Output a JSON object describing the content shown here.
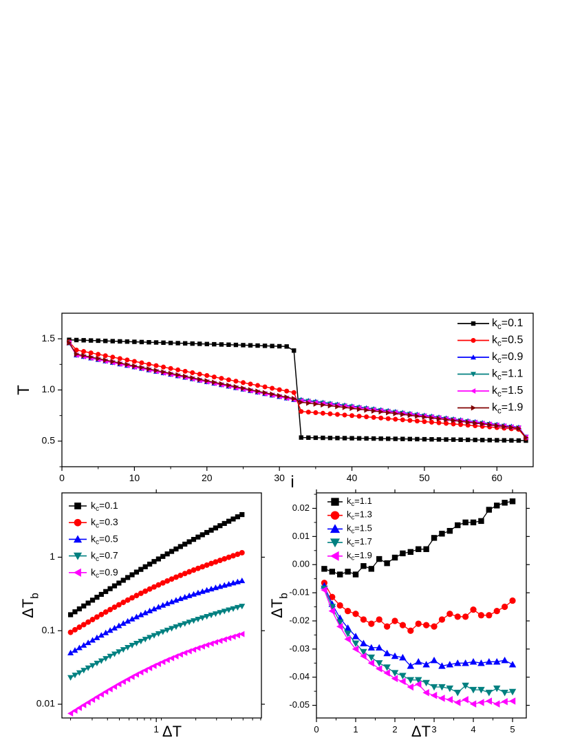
{
  "chart_data": [
    {
      "type": "line",
      "xlabel": "i",
      "ylabel": "T",
      "xlim": [
        0,
        65
      ],
      "ylim": [
        0.25,
        1.75
      ],
      "xticks": [
        0,
        10,
        20,
        30,
        40,
        50,
        60
      ],
      "yticks": [
        0.5,
        1.0,
        1.5
      ],
      "xtick_labels": [
        "0",
        "10",
        "20",
        "30",
        "40",
        "50",
        "60"
      ],
      "ytick_labels": [
        "0.5",
        "1.0",
        "1.5"
      ],
      "grid": false,
      "legend_position": "top-right",
      "legend": [
        {
          "prefix": "k",
          "sub": "c",
          "suffix": "=0.1"
        },
        {
          "prefix": "k",
          "sub": "c",
          "suffix": "=0.5"
        },
        {
          "prefix": "k",
          "sub": "c",
          "suffix": "=0.9"
        },
        {
          "prefix": "k",
          "sub": "c",
          "suffix": "=1.1"
        },
        {
          "prefix": "k",
          "sub": "c",
          "suffix": "=1.5"
        },
        {
          "prefix": "k",
          "sub": "c",
          "suffix": "=1.9"
        }
      ],
      "series": [
        {
          "name": "kc=0.1",
          "color": "#000000",
          "marker": "square",
          "x": [
            1,
            32,
            33,
            64
          ],
          "y": [
            1.49,
            1.38,
            0.535,
            0.5
          ],
          "segments": [
            [
              1,
              1.49,
              31,
              1.425
            ],
            [
              32,
              1.385,
              32,
              1.385
            ],
            [
              33,
              0.535,
              64,
              0.505
            ]
          ]
        },
        {
          "name": "kc=0.5",
          "color": "#ff0000",
          "marker": "circle",
          "x": [
            1,
            2,
            32,
            33,
            63,
            64
          ],
          "y": [
            1.47,
            1.39,
            0.975,
            0.79,
            0.615,
            0.53
          ]
        },
        {
          "name": "kc=0.9",
          "color": "#0000ff",
          "marker": "triangle-up",
          "x": [
            1,
            2,
            32,
            33,
            63,
            64
          ],
          "y": [
            1.46,
            1.34,
            0.905,
            0.905,
            0.635,
            0.54
          ]
        },
        {
          "name": "kc=1.1",
          "color": "#008080",
          "marker": "triangle-down",
          "x": [
            1,
            2,
            32,
            33,
            63,
            64
          ],
          "y": [
            1.46,
            1.34,
            0.905,
            0.9,
            0.63,
            0.54
          ]
        },
        {
          "name": "kc=1.5",
          "color": "#ff00ff",
          "marker": "triangle-left",
          "x": [
            1,
            2,
            32,
            33,
            63,
            64
          ],
          "y": [
            1.46,
            1.34,
            0.905,
            0.895,
            0.63,
            0.54
          ]
        },
        {
          "name": "kc=1.9",
          "color": "#800000",
          "marker": "triangle-right",
          "x": [
            1,
            2,
            32,
            33,
            63,
            64
          ],
          "y": [
            1.46,
            1.35,
            0.915,
            0.88,
            0.625,
            0.535
          ]
        }
      ]
    },
    {
      "type": "line",
      "xscale": "log",
      "yscale": "log",
      "xlabel": "ΔT",
      "ylabel": "ΔT",
      "ylabel_sub": "b",
      "xlim": [
        0.17,
        7.2
      ],
      "ylim": [
        0.0065,
        7.5
      ],
      "xticks": [
        1
      ],
      "xtick_labels": [
        "1"
      ],
      "yticks": [
        0.01,
        0.1,
        1
      ],
      "ytick_labels": [
        "0.01",
        "0.1",
        "1"
      ],
      "grid": false,
      "legend_position": "top-left",
      "legend": [
        {
          "prefix": "k",
          "sub": "c",
          "suffix": "=0.1"
        },
        {
          "prefix": "k",
          "sub": "c",
          "suffix": "=0.3"
        },
        {
          "prefix": "k",
          "sub": "c",
          "suffix": "=0.5"
        },
        {
          "prefix": "k",
          "sub": "c",
          "suffix": "=0.7"
        },
        {
          "prefix": "k",
          "sub": "c",
          "suffix": "=0.9"
        }
      ],
      "series": [
        {
          "name": "kc=0.1",
          "color": "#000000",
          "marker": "square",
          "x": [
            0.2,
            5.0
          ],
          "y": [
            0.165,
            3.8
          ],
          "curve": 0.06
        },
        {
          "name": "kc=0.3",
          "color": "#ff0000",
          "marker": "circle",
          "x": [
            0.2,
            5.0
          ],
          "y": [
            0.095,
            1.15
          ],
          "curve": 0.09
        },
        {
          "name": "kc=0.5",
          "color": "#0000ff",
          "marker": "triangle-up",
          "x": [
            0.2,
            5.0
          ],
          "y": [
            0.05,
            0.48
          ],
          "curve": 0.12
        },
        {
          "name": "kc=0.7",
          "color": "#008080",
          "marker": "triangle-down",
          "x": [
            0.2,
            5.0
          ],
          "y": [
            0.023,
            0.215
          ],
          "curve": 0.1
        },
        {
          "name": "kc=0.9",
          "color": "#ff00ff",
          "marker": "triangle-left",
          "x": [
            0.2,
            5.0
          ],
          "y": [
            0.0075,
            0.09
          ],
          "curve": 0.12
        }
      ]
    },
    {
      "type": "line",
      "xlabel": "ΔT",
      "ylabel": "ΔT",
      "ylabel_sub": "b",
      "xlim": [
        0,
        5.35
      ],
      "ylim": [
        -0.0545,
        0.0255
      ],
      "xticks": [
        0,
        1,
        2,
        3,
        4,
        5
      ],
      "xtick_labels": [
        "0",
        "1",
        "2",
        "3",
        "4",
        "5"
      ],
      "yticks": [
        0.02,
        0.01,
        0.0,
        -0.01,
        -0.02,
        -0.03,
        -0.04,
        -0.05
      ],
      "ytick_labels": [
        "0.02",
        "0.01",
        "0.00",
        "-0.01",
        "-0.02",
        "-0.03",
        "-0.04",
        "-0.05"
      ],
      "grid": false,
      "legend_position": "top-left",
      "legend": [
        {
          "prefix": "k",
          "sub": "c",
          "suffix": "=1.1"
        },
        {
          "prefix": "k",
          "sub": "c",
          "suffix": "=1.3"
        },
        {
          "prefix": "k",
          "sub": "c",
          "suffix": "=1.5"
        },
        {
          "prefix": "k",
          "sub": "c",
          "suffix": "=1.7"
        },
        {
          "prefix": "k",
          "sub": "c",
          "suffix": "=1.9"
        }
      ],
      "series": [
        {
          "name": "kc=1.1",
          "color": "#000000",
          "marker": "square",
          "x": [
            0.2,
            0.4,
            0.6,
            0.8,
            1.0,
            1.2,
            1.4,
            1.6,
            1.8,
            2.0,
            2.2,
            2.4,
            2.6,
            2.8,
            3.0,
            3.2,
            3.4,
            3.6,
            3.8,
            4.0,
            4.2,
            4.4,
            4.6,
            4.8,
            5.0
          ],
          "y": [
            -0.0015,
            -0.0025,
            -0.0035,
            -0.0025,
            -0.0035,
            -0.0005,
            -0.0015,
            0.002,
            0.0005,
            0.0025,
            0.004,
            0.0045,
            0.0055,
            0.0055,
            0.0095,
            0.011,
            0.012,
            0.014,
            0.015,
            0.015,
            0.0155,
            0.0195,
            0.021,
            0.022,
            0.0225
          ]
        },
        {
          "name": "kc=1.3",
          "color": "#ff0000",
          "marker": "circle",
          "x": [
            0.2,
            0.4,
            0.6,
            0.8,
            1.0,
            1.2,
            1.4,
            1.6,
            1.8,
            2.0,
            2.2,
            2.4,
            2.6,
            2.8,
            3.0,
            3.2,
            3.4,
            3.6,
            3.8,
            4.0,
            4.2,
            4.4,
            4.6,
            4.8,
            5.0
          ],
          "y": [
            -0.0065,
            -0.0115,
            -0.0145,
            -0.0165,
            -0.0175,
            -0.0195,
            -0.021,
            -0.0195,
            -0.022,
            -0.02,
            -0.0215,
            -0.0235,
            -0.021,
            -0.0215,
            -0.022,
            -0.0195,
            -0.0175,
            -0.0185,
            -0.0185,
            -0.016,
            -0.018,
            -0.018,
            -0.0165,
            -0.015,
            -0.0128
          ]
        },
        {
          "name": "kc=1.5",
          "color": "#0000ff",
          "marker": "triangle-up",
          "x": [
            0.2,
            0.4,
            0.6,
            0.8,
            1.0,
            1.2,
            1.4,
            1.6,
            1.8,
            2.0,
            2.2,
            2.4,
            2.6,
            2.8,
            3.0,
            3.2,
            3.4,
            3.6,
            3.8,
            4.0,
            4.2,
            4.4,
            4.6,
            4.8,
            5.0
          ],
          "y": [
            -0.0075,
            -0.014,
            -0.019,
            -0.0225,
            -0.0255,
            -0.028,
            -0.0295,
            -0.0295,
            -0.0315,
            -0.0325,
            -0.033,
            -0.036,
            -0.0345,
            -0.0355,
            -0.034,
            -0.036,
            -0.0355,
            -0.035,
            -0.035,
            -0.0345,
            -0.035,
            -0.0345,
            -0.0345,
            -0.034,
            -0.0355
          ]
        },
        {
          "name": "kc=1.7",
          "color": "#008080",
          "marker": "triangle-down",
          "x": [
            0.2,
            0.4,
            0.6,
            0.8,
            1.0,
            1.2,
            1.4,
            1.6,
            1.8,
            2.0,
            2.2,
            2.4,
            2.6,
            2.8,
            3.0,
            3.2,
            3.4,
            3.6,
            3.8,
            4.0,
            4.2,
            4.4,
            4.6,
            4.8,
            5.0
          ],
          "y": [
            -0.0085,
            -0.015,
            -0.0205,
            -0.0245,
            -0.028,
            -0.031,
            -0.033,
            -0.035,
            -0.0365,
            -0.0385,
            -0.0395,
            -0.041,
            -0.041,
            -0.042,
            -0.0435,
            -0.0435,
            -0.044,
            -0.0455,
            -0.043,
            -0.0445,
            -0.0445,
            -0.0455,
            -0.044,
            -0.0455,
            -0.0452
          ]
        },
        {
          "name": "kc=1.9",
          "color": "#ff00ff",
          "marker": "triangle-left",
          "x": [
            0.2,
            0.4,
            0.6,
            0.8,
            1.0,
            1.2,
            1.4,
            1.6,
            1.8,
            2.0,
            2.2,
            2.4,
            2.6,
            2.8,
            3.0,
            3.2,
            3.4,
            3.6,
            3.8,
            4.0,
            4.2,
            4.4,
            4.6,
            4.8,
            5.0
          ],
          "y": [
            -0.009,
            -0.0165,
            -0.022,
            -0.0265,
            -0.03,
            -0.0325,
            -0.035,
            -0.037,
            -0.0385,
            -0.0405,
            -0.0415,
            -0.0435,
            -0.0425,
            -0.0455,
            -0.0465,
            -0.0475,
            -0.048,
            -0.049,
            -0.048,
            -0.0495,
            -0.049,
            -0.0485,
            -0.0495,
            -0.0487,
            -0.0485
          ]
        }
      ]
    }
  ]
}
